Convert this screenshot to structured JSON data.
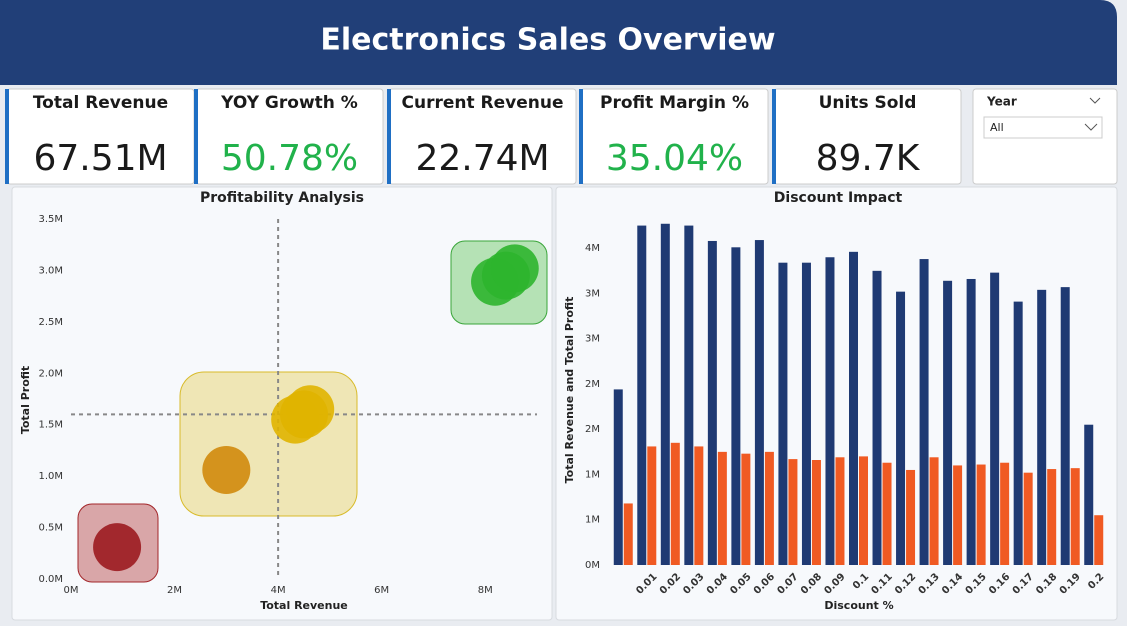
{
  "header": {
    "title": "Electronics Sales Overview"
  },
  "kpis": [
    {
      "label": "Total Revenue",
      "value": "67.51M",
      "color": "#1a1a1a"
    },
    {
      "label": "YOY Growth %",
      "value": "50.78%",
      "color": "#21b24b"
    },
    {
      "label": "Current Revenue",
      "value": "22.74M",
      "color": "#1a1a1a"
    },
    {
      "label": "Profit Margin %",
      "value": "35.04%",
      "color": "#21b24b"
    },
    {
      "label": "Units Sold",
      "value": "89.7K",
      "color": "#1a1a1a"
    }
  ],
  "slicer": {
    "label": "Year",
    "value": "All"
  },
  "chart_data": [
    {
      "type": "scatter",
      "title": "Profitability Analysis",
      "x_label": "Total Revenue",
      "y_label": "Total Profit",
      "series": [
        {
          "color": "#9b1b1f",
          "x": [
            890000
          ],
          "values": [
            310000
          ]
        },
        {
          "color": "#d08a0c",
          "x": [
            3000000
          ],
          "values": [
            1060000
          ]
        },
        {
          "color": "#e0b400",
          "x": [
            4330000,
            4500000,
            4620000
          ],
          "values": [
            1550000,
            1600000,
            1650000
          ]
        },
        {
          "color": "#2db52d",
          "x": [
            8190000,
            8400000,
            8570000
          ],
          "values": [
            2890000,
            2950000,
            3020000
          ]
        }
      ],
      "ref_x": 4000000,
      "ref_y": 1600000,
      "xlim": [
        0,
        9000000
      ],
      "xticks": [
        {
          "value": 0,
          "label": "0M"
        },
        {
          "value": 2000000,
          "label": "2M"
        },
        {
          "value": 4000000,
          "label": "4M"
        },
        {
          "value": 6000000,
          "label": "6M"
        },
        {
          "value": 8000000,
          "label": "8M"
        }
      ],
      "ylim": [
        0,
        3500000
      ],
      "yticks": [
        {
          "value": 0,
          "label": "0.0M"
        },
        {
          "value": 500000,
          "label": "0.5M"
        },
        {
          "value": 1000000,
          "label": "1.0M"
        },
        {
          "value": 1500000,
          "label": "1.5M"
        },
        {
          "value": 2000000,
          "label": "2.0M"
        },
        {
          "value": 2500000,
          "label": "2.5M"
        },
        {
          "value": 3000000,
          "label": "3.0M"
        },
        {
          "value": 3500000,
          "label": "3.5M"
        }
      ]
    },
    {
      "type": "bar",
      "title": "Discount Impact",
      "x_label": "Discount %",
      "y_label": "Total Revenue and Total Profit",
      "categories": [
        null,
        "0.01",
        "0.02",
        "0.03",
        "0.04",
        "0.05",
        "0.06",
        "0.07",
        "0.08",
        "0.09",
        "0.1",
        "0.11",
        "0.12",
        "0.13",
        "0.14",
        "0.15",
        "0.16",
        "0.17",
        "0.18",
        "0.19",
        "0.2"
      ],
      "series": [
        {
          "color": "#1f3a73",
          "values": [
            1940000,
            3750000,
            3770000,
            3750000,
            3580000,
            3510000,
            3590000,
            3340000,
            3340000,
            3400000,
            3460000,
            3250000,
            3020000,
            3380000,
            3140000,
            3160000,
            3230000,
            2910000,
            3040000,
            3070000,
            1550000
          ]
        },
        {
          "color": "#f05a23",
          "values": [
            680000,
            1310000,
            1350000,
            1310000,
            1250000,
            1230000,
            1250000,
            1170000,
            1160000,
            1190000,
            1200000,
            1130000,
            1050000,
            1190000,
            1100000,
            1110000,
            1130000,
            1020000,
            1060000,
            1070000,
            550000
          ]
        }
      ],
      "ylim": [
        0,
        3900000
      ],
      "yticks": [
        {
          "value": 0,
          "label": "0M"
        },
        {
          "value": 500000,
          "label": "1M"
        },
        {
          "value": 1000000,
          "label": "1M"
        },
        {
          "value": 1500000,
          "label": "2M"
        },
        {
          "value": 2000000,
          "label": "2M"
        },
        {
          "value": 2500000,
          "label": "3M"
        },
        {
          "value": 3000000,
          "label": "3M"
        },
        {
          "value": 3500000,
          "label": "4M"
        }
      ]
    }
  ]
}
